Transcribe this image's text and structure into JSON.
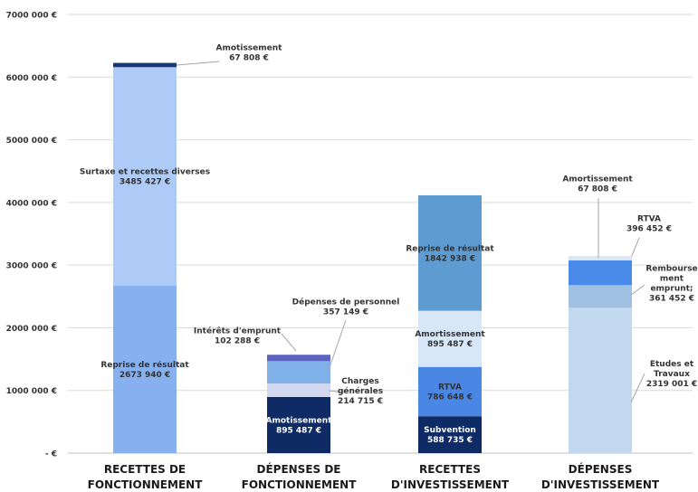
{
  "chart_data": {
    "type": "bar",
    "stacked": true,
    "grid": true,
    "legend": "none",
    "ylim": [
      0,
      7000000
    ],
    "y_tick_values": [
      0,
      1000000,
      2000000,
      3000000,
      4000000,
      5000000,
      6000000,
      7000000
    ],
    "y_tick_labels": [
      "- €",
      "1000 000 €",
      "2000 000 €",
      "3000 000 €",
      "4000 000 €",
      "5000 000 €",
      "6000 000 €",
      "7000 000 €"
    ],
    "categories": [
      {
        "line1": "RECETTES DE",
        "line2": "FONCTIONNEMENT"
      },
      {
        "line1": "DÉPENSES DE",
        "line2": "FONCTIONNEMENT"
      },
      {
        "line1": "RECETTES",
        "line2": "D'INVESTISSEMENT"
      },
      {
        "line1": "DÉPENSES",
        "line2": "D'INVESTISSEMENT"
      }
    ],
    "stacks": [
      [
        {
          "value": 2673940,
          "color": "#86b0ee",
          "label_lines": [
            "Reprise de résultat",
            "2673 940 €"
          ],
          "label_mode": "inside"
        },
        {
          "value": 3485427,
          "color": "#aecbf7",
          "label_lines": [
            "Surtaxe et recettes diverses",
            "3485 427 €"
          ],
          "label_mode": "inside"
        },
        {
          "value": 67808,
          "color": "#1b3770",
          "label_lines": [
            "Amotissement",
            "67 808 €"
          ],
          "label_mode": "callout"
        }
      ],
      [
        {
          "value": 895487,
          "color": "#0f2b66",
          "label_lines": [
            "Amotissement",
            "895 487 €"
          ],
          "label_mode": "inside",
          "text_color": "#ffffff"
        },
        {
          "value": 214715,
          "color": "#d2d8f0",
          "label_lines": [
            "Charges",
            "générales",
            "214 715 €"
          ],
          "label_mode": "callout"
        },
        {
          "value": 357149,
          "color": "#7fb1e8",
          "label_lines": [
            "Dépenses de personnel",
            "357 149 €"
          ],
          "label_mode": "callout"
        },
        {
          "value": 102288,
          "color": "#5d63c0",
          "label_lines": [
            "Intérêts d'emprunt",
            "102 288 €"
          ],
          "label_mode": "callout"
        }
      ],
      [
        {
          "value": 588735,
          "color": "#0f2b66",
          "label_lines": [
            "Subvention",
            "588 735 €"
          ],
          "label_mode": "inside",
          "text_color": "#ffffff"
        },
        {
          "value": 786648,
          "color": "#4a86e3",
          "label_lines": [
            "RTVA",
            "786 648 €"
          ],
          "label_mode": "inside"
        },
        {
          "value": 895487,
          "color": "#d8e7f8",
          "label_lines": [
            "Amortissement",
            "895 487 €"
          ],
          "label_mode": "inside"
        },
        {
          "value": 1842938,
          "color": "#5e9bd0",
          "label_lines": [
            "Reprise de résultat",
            "1842 938 €"
          ],
          "label_mode": "inside"
        }
      ],
      [
        {
          "value": 2319001,
          "color": "#c2d8ee",
          "label_lines": [
            "Etudes et",
            "Travaux",
            "2319 001 €"
          ],
          "label_mode": "callout"
        },
        {
          "value": 361452,
          "color": "#a0c0e2",
          "label_lines": [
            "Rembourse",
            "ment",
            "emprunt;",
            "361 452 €"
          ],
          "label_mode": "callout"
        },
        {
          "value": 396452,
          "color": "#4a8ae8",
          "label_lines": [
            "RTVA",
            "396 452 €"
          ],
          "label_mode": "callout"
        },
        {
          "value": 67808,
          "color": "#dbe6f3",
          "label_lines": [
            "Amortissement",
            "67 808 €"
          ],
          "label_mode": "callout"
        }
      ]
    ]
  }
}
